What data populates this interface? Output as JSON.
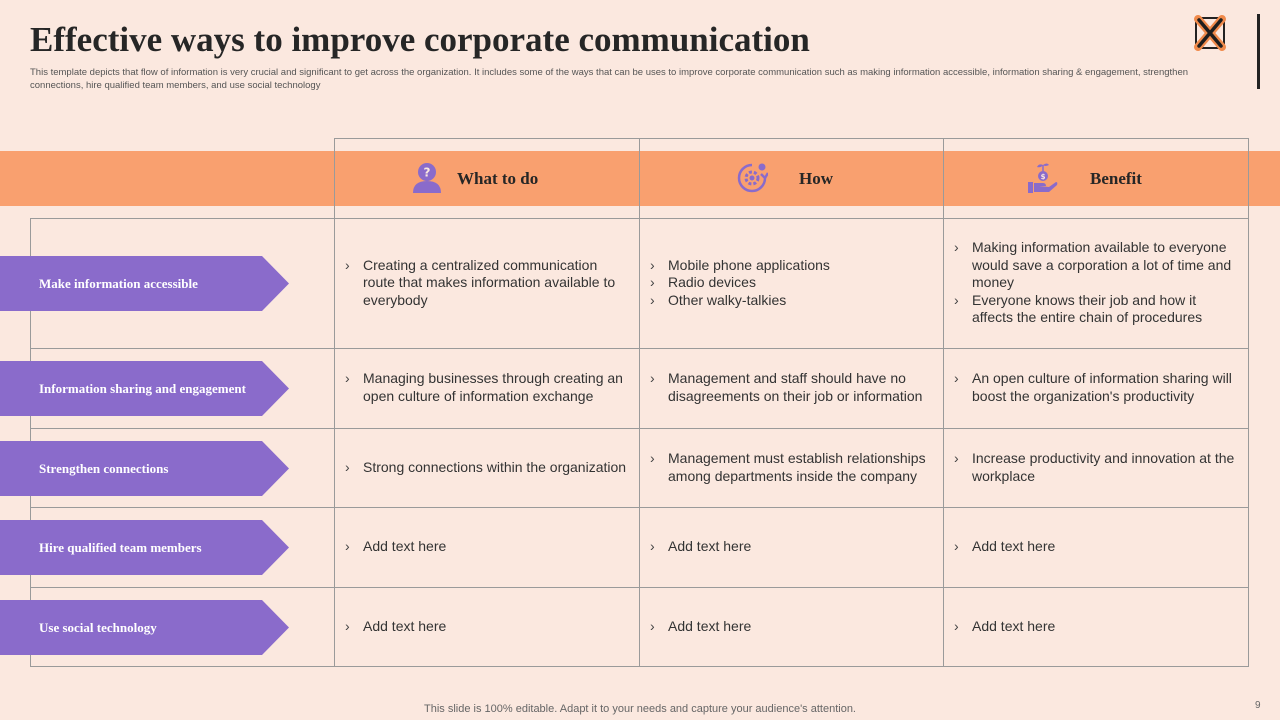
{
  "slide": {
    "title": "Effective ways to improve corporate communication",
    "subtitle": "This template depicts that flow of information is very crucial and significant to get across the organization. It includes some of the ways that can be uses to improve corporate communication such as making information accessible, information sharing & engagement, strengthen connections, hire qualified team members, and use social technology",
    "footer": "This slide is 100% editable. Adapt it to your needs and capture your audience's attention.",
    "page_number": "9"
  },
  "colors": {
    "background": "#fbe8df",
    "header_band": "#f9a06f",
    "row_arrow": "#8a6bcb",
    "icon": "#8a6bcb"
  },
  "headers": [
    {
      "label": "What to do",
      "icon": "person-question-icon"
    },
    {
      "label": "How",
      "icon": "gear-cycle-icon"
    },
    {
      "label": "Benefit",
      "icon": "hand-money-plant-icon"
    }
  ],
  "rows": [
    {
      "label": "Make information accessible",
      "what": [
        "Creating a centralized communication route that makes information available to everybody"
      ],
      "how": [
        "Mobile phone applications",
        "Radio devices",
        "Other walky-talkies"
      ],
      "benefit": [
        "Making information available to everyone would save a corporation a lot of time and money",
        "Everyone knows their job and how it affects the entire chain of procedures"
      ]
    },
    {
      "label": "Information sharing and engagement",
      "what": [
        "Managing businesses through creating an open culture of information exchange"
      ],
      "how": [
        "Management and staff should have no disagreements on their job or information"
      ],
      "benefit": [
        "An open culture of information sharing will boost the organization's productivity"
      ]
    },
    {
      "label": "Strengthen connections",
      "what": [
        "Strong connections within the organization"
      ],
      "how": [
        "Management must establish relationships among departments inside the company"
      ],
      "benefit": [
        "Increase productivity and innovation at the workplace"
      ]
    },
    {
      "label": "Hire qualified team members",
      "what": [
        "Add text here"
      ],
      "how": [
        "Add text here"
      ],
      "benefit": [
        "Add text here"
      ]
    },
    {
      "label": "Use social technology",
      "what": [
        "Add text here"
      ],
      "how": [
        "Add text here"
      ],
      "benefit": [
        "Add text here"
      ]
    }
  ]
}
